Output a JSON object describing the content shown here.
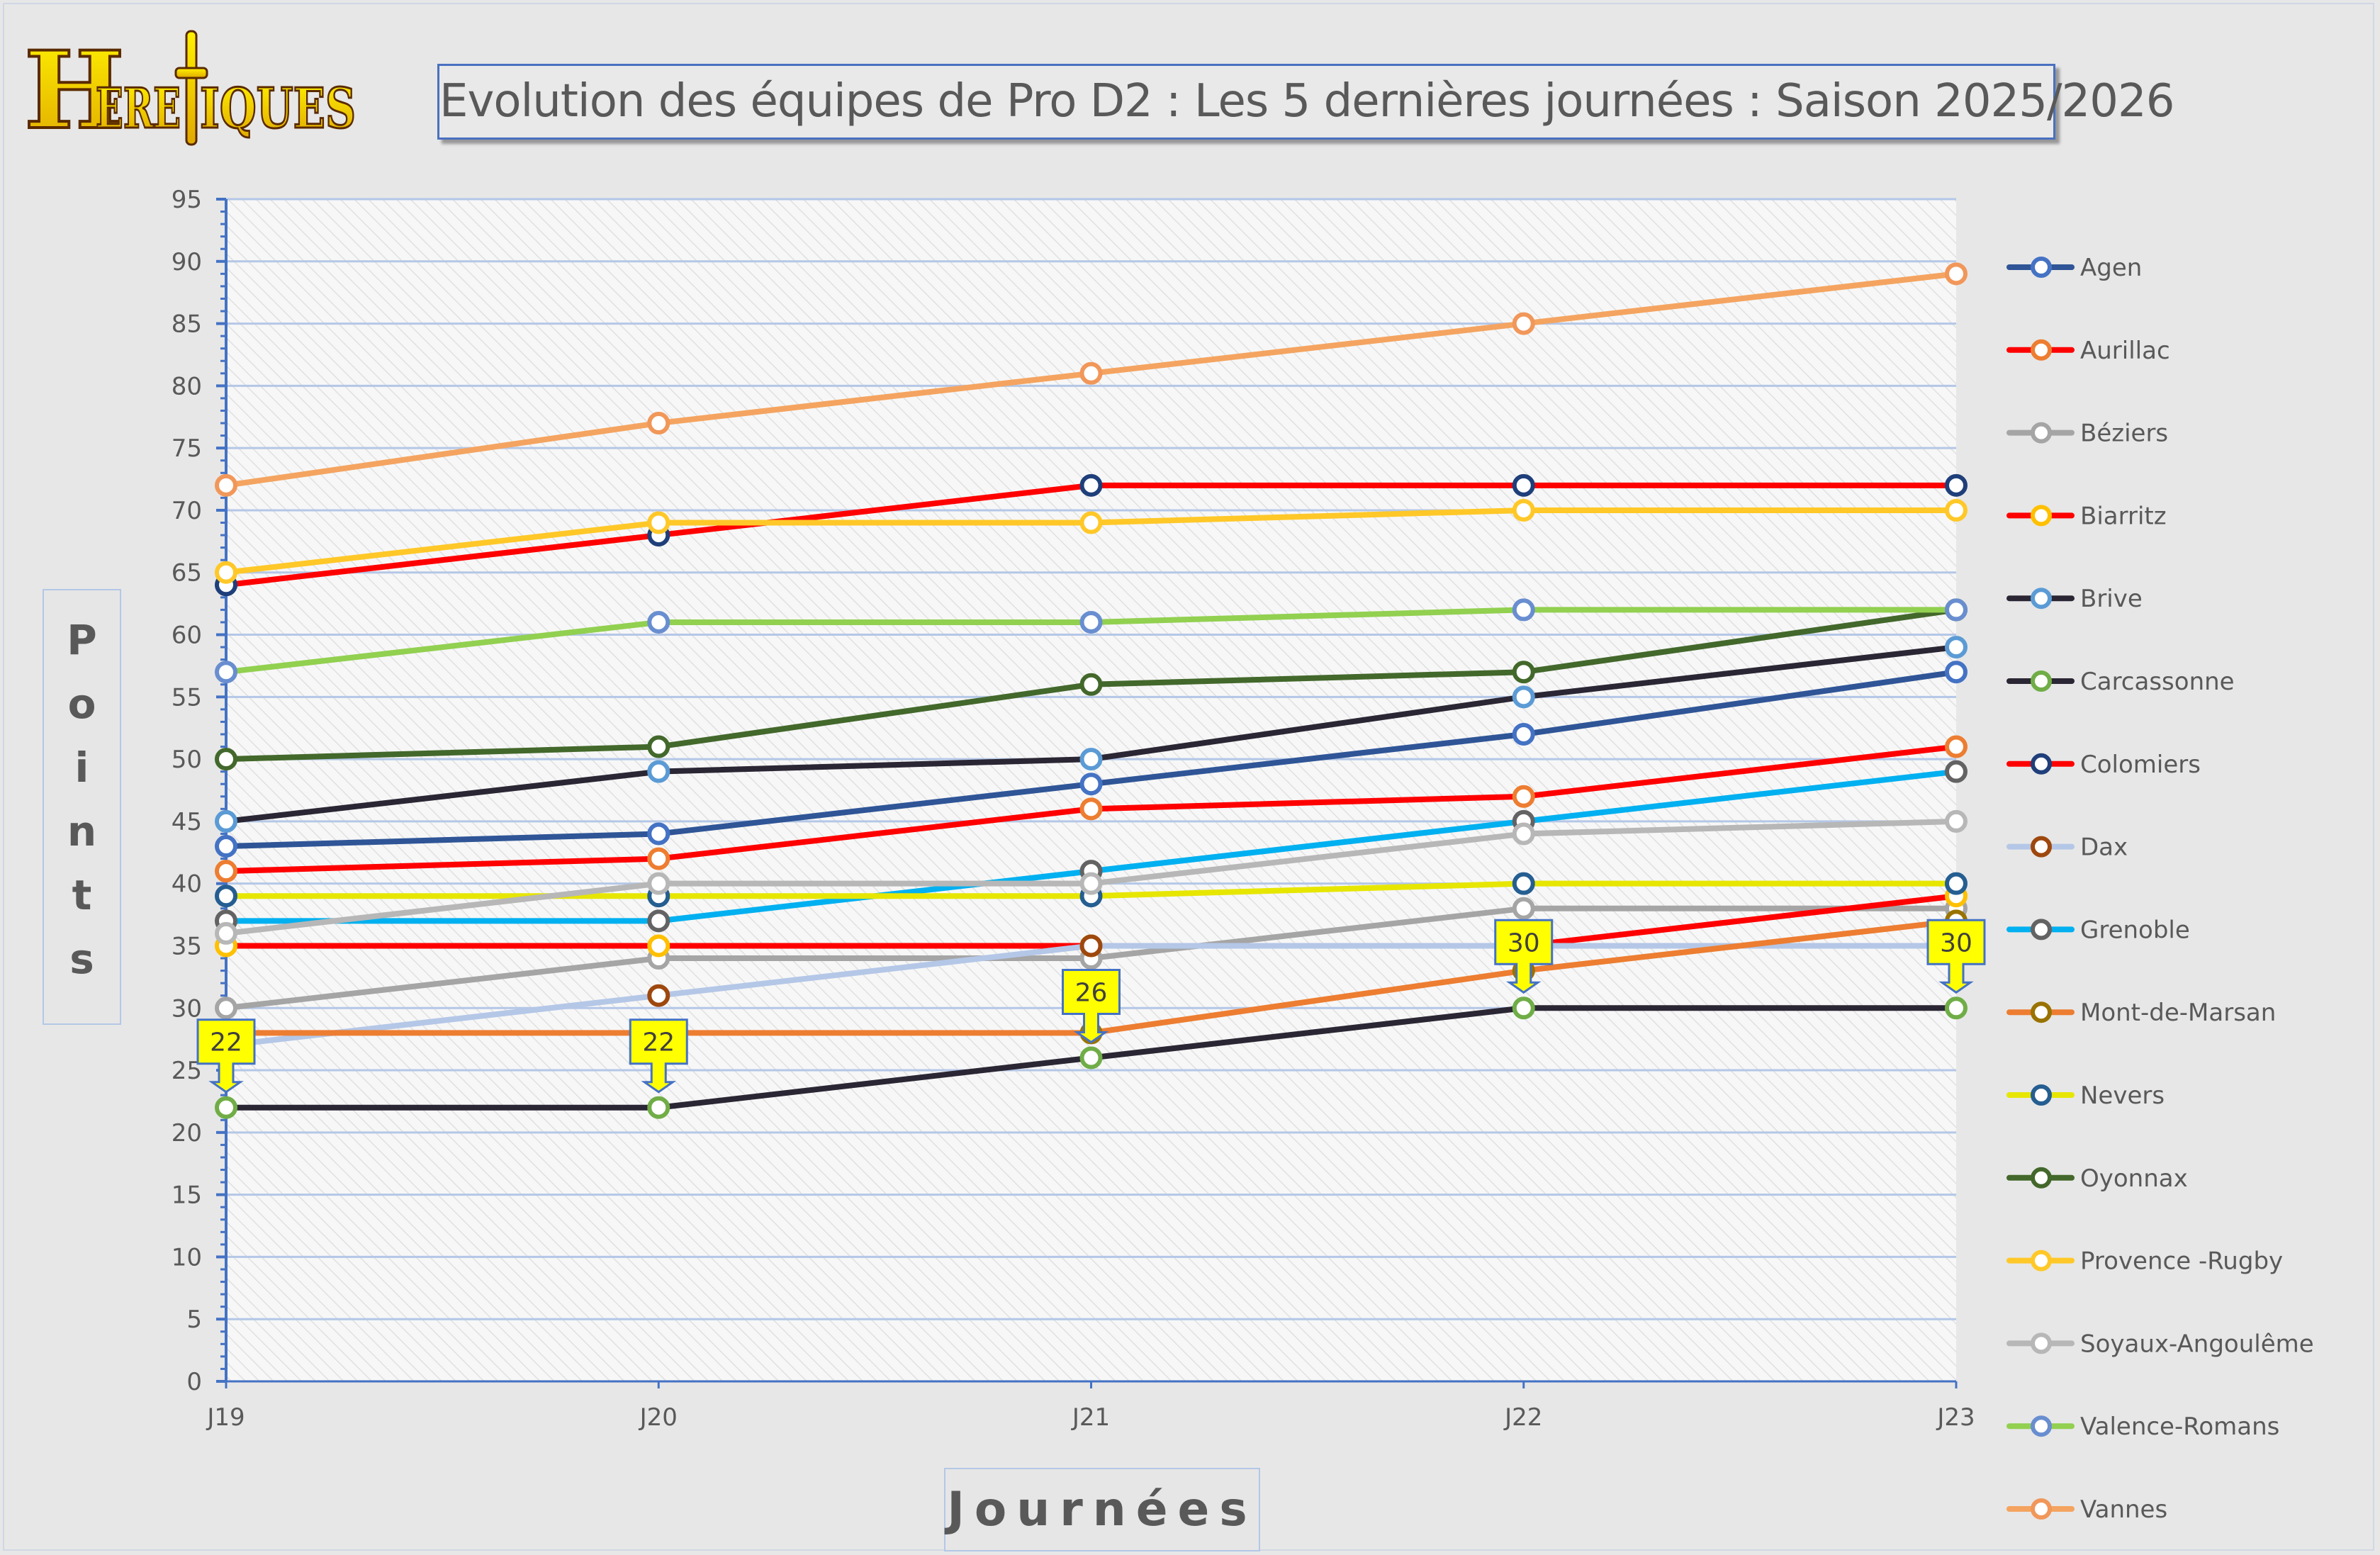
{
  "logo": {
    "text": "HERETIQUES",
    "color": "#f5d400"
  },
  "title": "Evolution des équipes de Pro D2 : Les 5 dernières journées : Saison 2025/2026",
  "chart_data": {
    "type": "line",
    "title": "Evolution des équipes de Pro D2 : Les 5 dernières journées : Saison 2025/2026",
    "xlabel": "Journées",
    "ylabel": "Points",
    "categories": [
      "J19",
      "J20",
      "J21",
      "J22",
      "J23"
    ],
    "ylim": [
      0,
      95
    ],
    "ytick_step": 5,
    "grid": true,
    "legend_position": "right",
    "series": [
      {
        "name": "Agen",
        "line_color": "#2f5597",
        "marker_color": "#4472c4",
        "values": [
          43,
          44,
          48,
          52,
          57
        ]
      },
      {
        "name": "Aurillac",
        "line_color": "#ff0000",
        "marker_color": "#ed7d31",
        "values": [
          41,
          42,
          46,
          47,
          51
        ]
      },
      {
        "name": "Béziers",
        "line_color": "#a5a5a5",
        "marker_color": "#a5a5a5",
        "values": [
          30,
          34,
          34,
          38,
          38
        ]
      },
      {
        "name": "Biarritz",
        "line_color": "#ff0000",
        "marker_color": "#ffc000",
        "values": [
          35,
          35,
          35,
          35,
          39
        ]
      },
      {
        "name": "Brive",
        "line_color": "#2b2634",
        "marker_color": "#5b9bd5",
        "values": [
          45,
          49,
          50,
          55,
          59
        ]
      },
      {
        "name": "Carcassonne",
        "line_color": "#2b2634",
        "marker_color": "#70ad47",
        "values": [
          22,
          22,
          26,
          30,
          30
        ],
        "data_labels": true,
        "label_fill": "#ffff00"
      },
      {
        "name": "Colomiers",
        "line_color": "#ff0000",
        "marker_color": "#1f3f7a",
        "values": [
          64,
          68,
          72,
          72,
          72
        ]
      },
      {
        "name": "Dax",
        "line_color": "#b4c7e7",
        "marker_color": "#9e480e",
        "values": [
          27,
          31,
          35,
          35,
          35
        ]
      },
      {
        "name": "Grenoble",
        "line_color": "#00b0f0",
        "marker_color": "#636363",
        "values": [
          37,
          37,
          41,
          45,
          49
        ]
      },
      {
        "name": "Mont-de-Marsan",
        "line_color": "#ed7d31",
        "marker_color": "#997300",
        "values": [
          28,
          28,
          28,
          33,
          37
        ]
      },
      {
        "name": "Nevers",
        "line_color": "#e6e600",
        "marker_color": "#255e91",
        "values": [
          39,
          39,
          39,
          40,
          40
        ]
      },
      {
        "name": "Oyonnax",
        "line_color": "#43682b",
        "marker_color": "#43682b",
        "values": [
          50,
          51,
          56,
          57,
          62
        ]
      },
      {
        "name": "Provence -Rugby",
        "line_color": "#ffc828",
        "marker_color": "#ffc828",
        "values": [
          65,
          69,
          69,
          70,
          70
        ]
      },
      {
        "name": "Soyaux-Angoulême",
        "line_color": "#b7b7b7",
        "marker_color": "#b7b7b7",
        "values": [
          36,
          40,
          40,
          44,
          45
        ]
      },
      {
        "name": "Valence-Romans",
        "line_color": "#92d050",
        "marker_color": "#698ed0",
        "values": [
          57,
          61,
          61,
          62,
          62
        ]
      },
      {
        "name": "Vannes",
        "line_color": "#f4a460",
        "marker_color": "#f1975a",
        "values": [
          72,
          77,
          81,
          85,
          89
        ]
      }
    ]
  },
  "colors": {
    "axis": "#4472c4",
    "grid": "#b4c7e7",
    "text": "#595959",
    "background": "#e7e7e7"
  }
}
